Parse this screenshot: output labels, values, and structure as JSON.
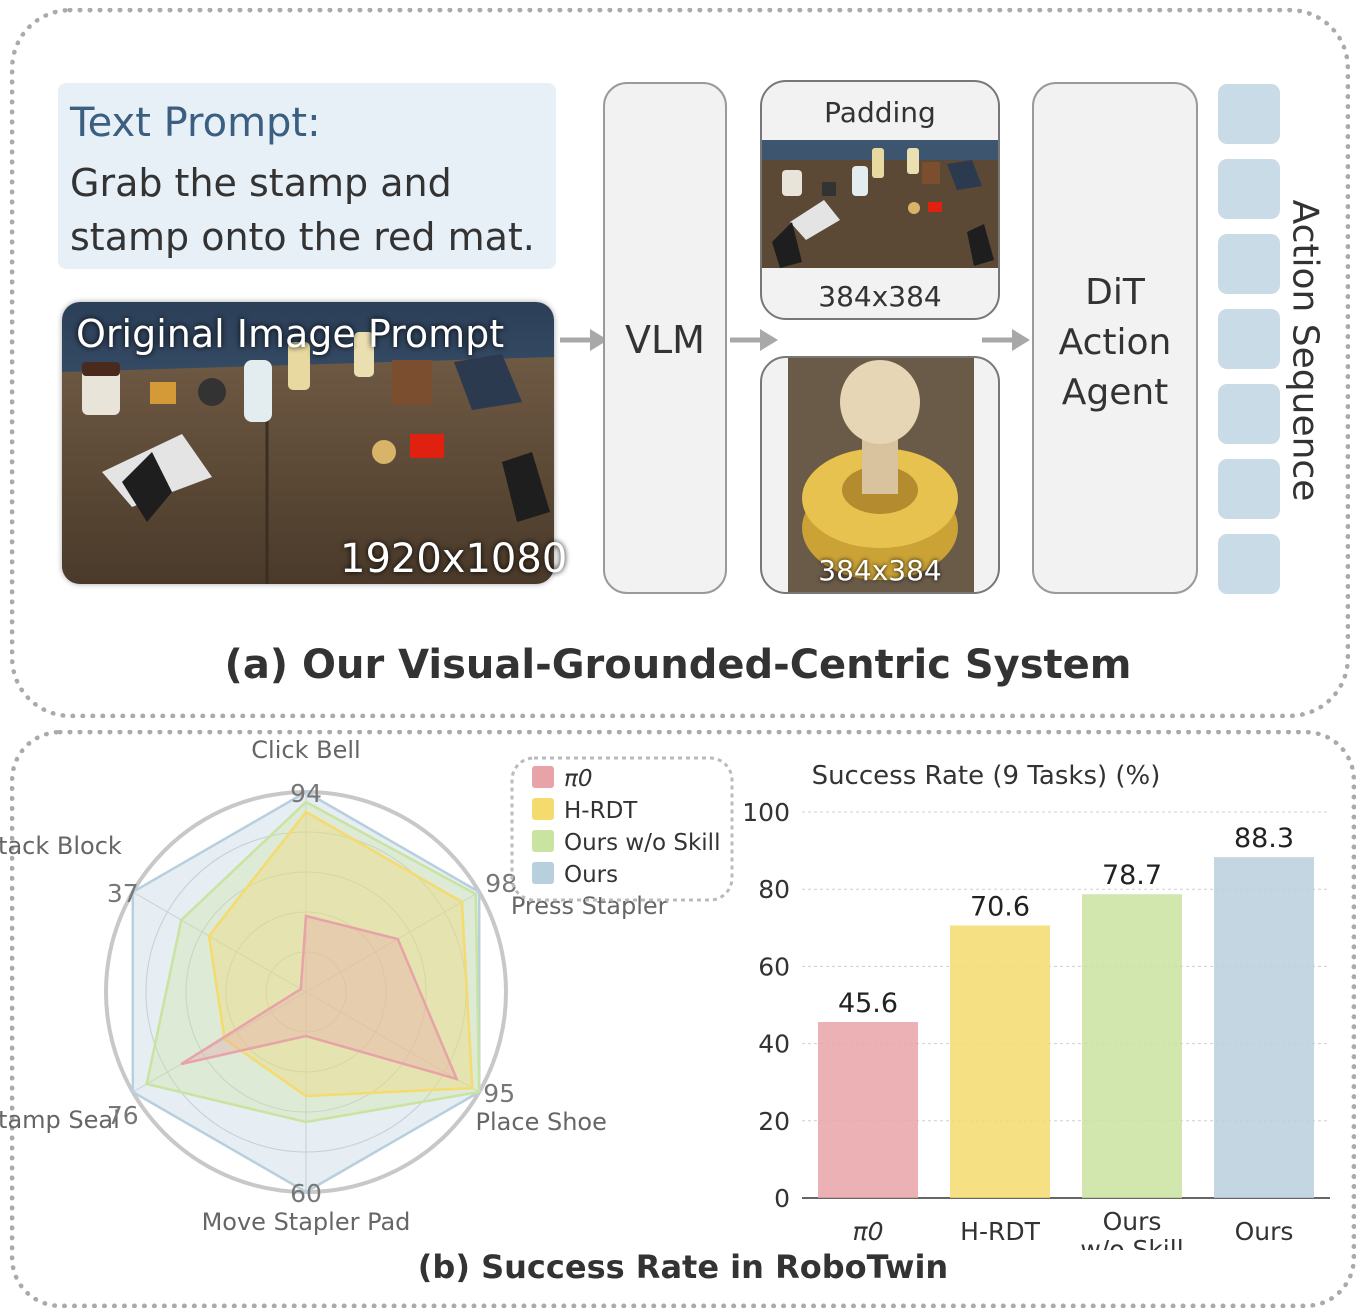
{
  "panel_a": {
    "text_prompt_title": "Text Prompt:",
    "text_prompt_body": "Grab the stamp and stamp onto the red mat.",
    "original_image_label": "Original Image Prompt",
    "original_image_resolution": "1920x1080",
    "vlm_label": "VLM",
    "padding_label": "Padding",
    "padding_resolution": "384x384",
    "crop_resolution": "384x384",
    "dit_label_line1": "DiT",
    "dit_label_line2": "Action",
    "dit_label_line3": "Agent",
    "action_sequence_label": "Action Sequence",
    "caption": "(a) Our Visual-Grounded-Centric System"
  },
  "panel_b": {
    "caption": "(b) Success Rate in RoboTwin"
  },
  "colors": {
    "pi0": "#e8a3a8",
    "hrdt": "#f5da6e",
    "ours_wo_skill": "#c9e3a0",
    "ours": "#b8cfdd"
  },
  "chart_data": [
    {
      "type": "radar",
      "axes": [
        "Click Bell",
        "Press Stapler",
        "Place Shoe",
        "Move Stapler Pad",
        "Stamp Seal",
        "Stack Block"
      ],
      "axis_max_labels": [
        "94",
        "98",
        "95",
        "60",
        "76",
        "37"
      ],
      "axis_max": [
        94,
        98,
        95,
        60,
        76,
        37
      ],
      "series": [
        {
          "name": "π0",
          "values": [
            38,
            53,
            87,
            22,
            72,
            3
          ]
        },
        {
          "name": "H-RDT",
          "values": [
            90,
            90,
            96,
            52,
            47,
            56
          ]
        },
        {
          "name": "Ours w/o Skill",
          "values": [
            95,
            98,
            100,
            65,
            92,
            72
          ]
        },
        {
          "name": "Ours",
          "values": [
            100,
            100,
            100,
            100,
            100,
            100
          ]
        }
      ],
      "legend": [
        "π0",
        "H-RDT",
        "Ours w/o Skill",
        "Ours"
      ],
      "legend_position": "top-right",
      "note": "series values are percent of each axis maximum"
    },
    {
      "type": "bar",
      "title": "Success Rate (9 Tasks) (%)",
      "categories": [
        "π0",
        "H-RDT",
        "Ours\nw/o Skill",
        "Ours"
      ],
      "values": [
        45.6,
        70.6,
        78.7,
        88.3
      ],
      "value_labels": [
        "45.6",
        "70.6",
        "78.7",
        "88.3"
      ],
      "ylim": [
        0,
        100
      ],
      "yticks": [
        "0",
        "20",
        "40",
        "60",
        "80",
        "100"
      ],
      "grid": true
    }
  ]
}
